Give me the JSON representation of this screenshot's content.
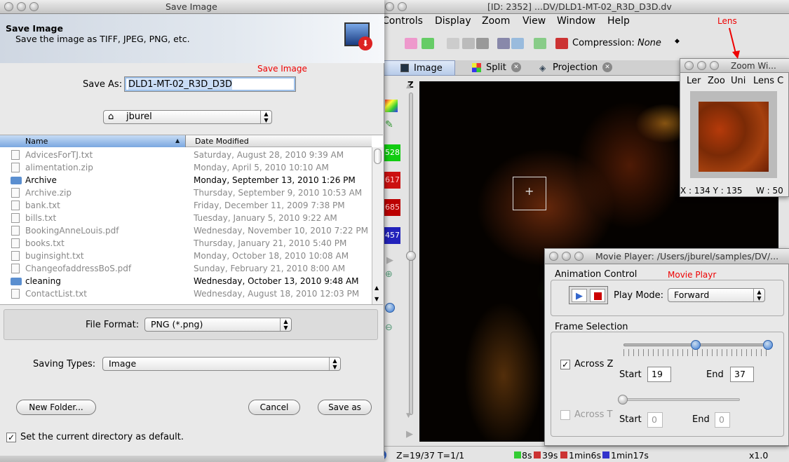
{
  "main_window": {
    "title": "[ID: 2352] ...DV/DLD1-MT-02_R3D_D3D.dv",
    "menu": [
      "Controls",
      "Display",
      "Zoom",
      "View",
      "Window",
      "Help"
    ],
    "compression_label": "Compression:",
    "compression_value": "None",
    "tabs": [
      "Image",
      "Split",
      "Projection"
    ],
    "channels": [
      "528",
      "617",
      "685",
      "457"
    ],
    "z_label": "Z",
    "status_zt": "Z=19/37 T=1/1",
    "timings": [
      "8s",
      "39s",
      "1min6s",
      "1min17s"
    ],
    "zoom_factor": "x1.0"
  },
  "save_dialog": {
    "window_title": "Save Image",
    "header_title": "Save Image",
    "header_subtitle": "Save the image as TIFF, JPEG, PNG, etc.",
    "annotation": "Save Image",
    "save_as_label": "Save As:",
    "save_as_value": "DLD1-MT-02_R3D_D3D",
    "location": "jburel",
    "col_name": "Name",
    "col_date": "Date Modified",
    "files": [
      {
        "name": "AdvicesForTJ.txt",
        "date": "Saturday, August 28, 2010 9:39 AM",
        "kind": "file",
        "enabled": false
      },
      {
        "name": "alimentation.zip",
        "date": "Monday, April 5, 2010 10:10 AM",
        "kind": "file",
        "enabled": false
      },
      {
        "name": "Archive",
        "date": "Monday, September 13, 2010 1:26 PM",
        "kind": "folder",
        "enabled": true
      },
      {
        "name": "Archive.zip",
        "date": "Thursday, September 9, 2010 10:53 AM",
        "kind": "file",
        "enabled": false
      },
      {
        "name": "bank.txt",
        "date": "Friday, December 11, 2009 7:38 PM",
        "kind": "file",
        "enabled": false
      },
      {
        "name": "bills.txt",
        "date": "Tuesday, January 5, 2010 9:22 AM",
        "kind": "file",
        "enabled": false
      },
      {
        "name": "BookingAnneLouis.pdf",
        "date": "Wednesday, November 10, 2010 7:22 PM",
        "kind": "file",
        "enabled": false
      },
      {
        "name": "books.txt",
        "date": "Thursday, January 21, 2010 5:40 PM",
        "kind": "file",
        "enabled": false
      },
      {
        "name": "buginsight.txt",
        "date": "Monday, October 18, 2010 10:08 AM",
        "kind": "file",
        "enabled": false
      },
      {
        "name": "ChangeofaddressBoS.pdf",
        "date": "Sunday, February 21, 2010 8:00 AM",
        "kind": "file",
        "enabled": false
      },
      {
        "name": "cleaning",
        "date": "Wednesday, October 13, 2010 9:48 AM",
        "kind": "folder",
        "enabled": true
      },
      {
        "name": "ContactList.txt",
        "date": "Wednesday, August 18, 2010 12:03 PM",
        "kind": "file",
        "enabled": false
      }
    ],
    "file_format_label": "File Format:",
    "file_format_value": "PNG (*.png)",
    "saving_types_label": "Saving Types:",
    "saving_types_value": "Image",
    "new_folder": "New Folder...",
    "cancel": "Cancel",
    "save": "Save as",
    "default_dir_label": "Set the current directory as default."
  },
  "zoom_window": {
    "title": "Zoom Wi...",
    "annotation": "Lens",
    "tabs": [
      "Ler",
      "Zoo",
      "Uni",
      "Lens C"
    ],
    "coords": "X : 134 Y : 135",
    "width": "W : 50"
  },
  "movie_player": {
    "title": "Movie Player: /Users/jburel/samples/DV/...",
    "annotation": "Movie Playr",
    "animation_control": "Animation Control",
    "play_mode_label": "Play Mode:",
    "play_mode_value": "Forward",
    "frame_selection": "Frame Selection",
    "across_z": "Across Z",
    "across_z_checked": true,
    "start_label": "Start",
    "end_label": "End",
    "z_start": "19",
    "z_end": "37",
    "across_t": "Across T",
    "across_t_checked": false,
    "t_start": "0",
    "t_end": "0"
  }
}
